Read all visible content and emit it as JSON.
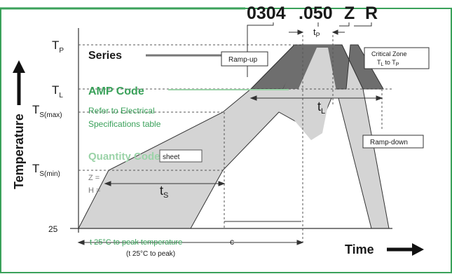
{
  "part_number": {
    "series_code": "0304",
    "amp_code": ".050",
    "option_1": "Z",
    "option_2": "R"
  },
  "axes": {
    "y_label": "Temperature",
    "x_label": "Time",
    "ticks": {
      "tp": "T",
      "tp_sub": "P",
      "tl": "T",
      "tl_sub": "L",
      "tsmax": "T",
      "tsmax_sub": "S(max)",
      "tsmin": "T",
      "tsmin_sub": "S(min)",
      "t25": "25"
    }
  },
  "legend": {
    "series": "Series",
    "amp_code": "AMP Code",
    "refer_1": "Refer to Electrical",
    "refer_2": "Specifications table",
    "quantity": "Quantity Code",
    "quantity_box": "sheet",
    "z_prefix": "Z =",
    "h_prefix": "H ="
  },
  "labels": {
    "ramp_up": "Ramp-up",
    "ramp_down": "Ramp-down",
    "critical_1": "Critical Zone",
    "critical_2": "T",
    "critical_2_sub": "L",
    "critical_2_mid": "to T",
    "critical_2_sub2": "P",
    "tp_time": "t",
    "tp_time_sub": "P",
    "tl_time": "t",
    "tl_time_sub": "L",
    "ts_time": "t",
    "ts_time_sub": "S",
    "bottom_1": "t 25°C to peak temperature",
    "bottom_2": "(t 25°C to peak)",
    "c_label": "c"
  },
  "colors": {
    "border": "#3aa15a",
    "light_fill": "#d4d4d4",
    "dark_fill": "#6e6e6e",
    "text": "#1a1a1a",
    "green_text": "#3aa15a"
  }
}
